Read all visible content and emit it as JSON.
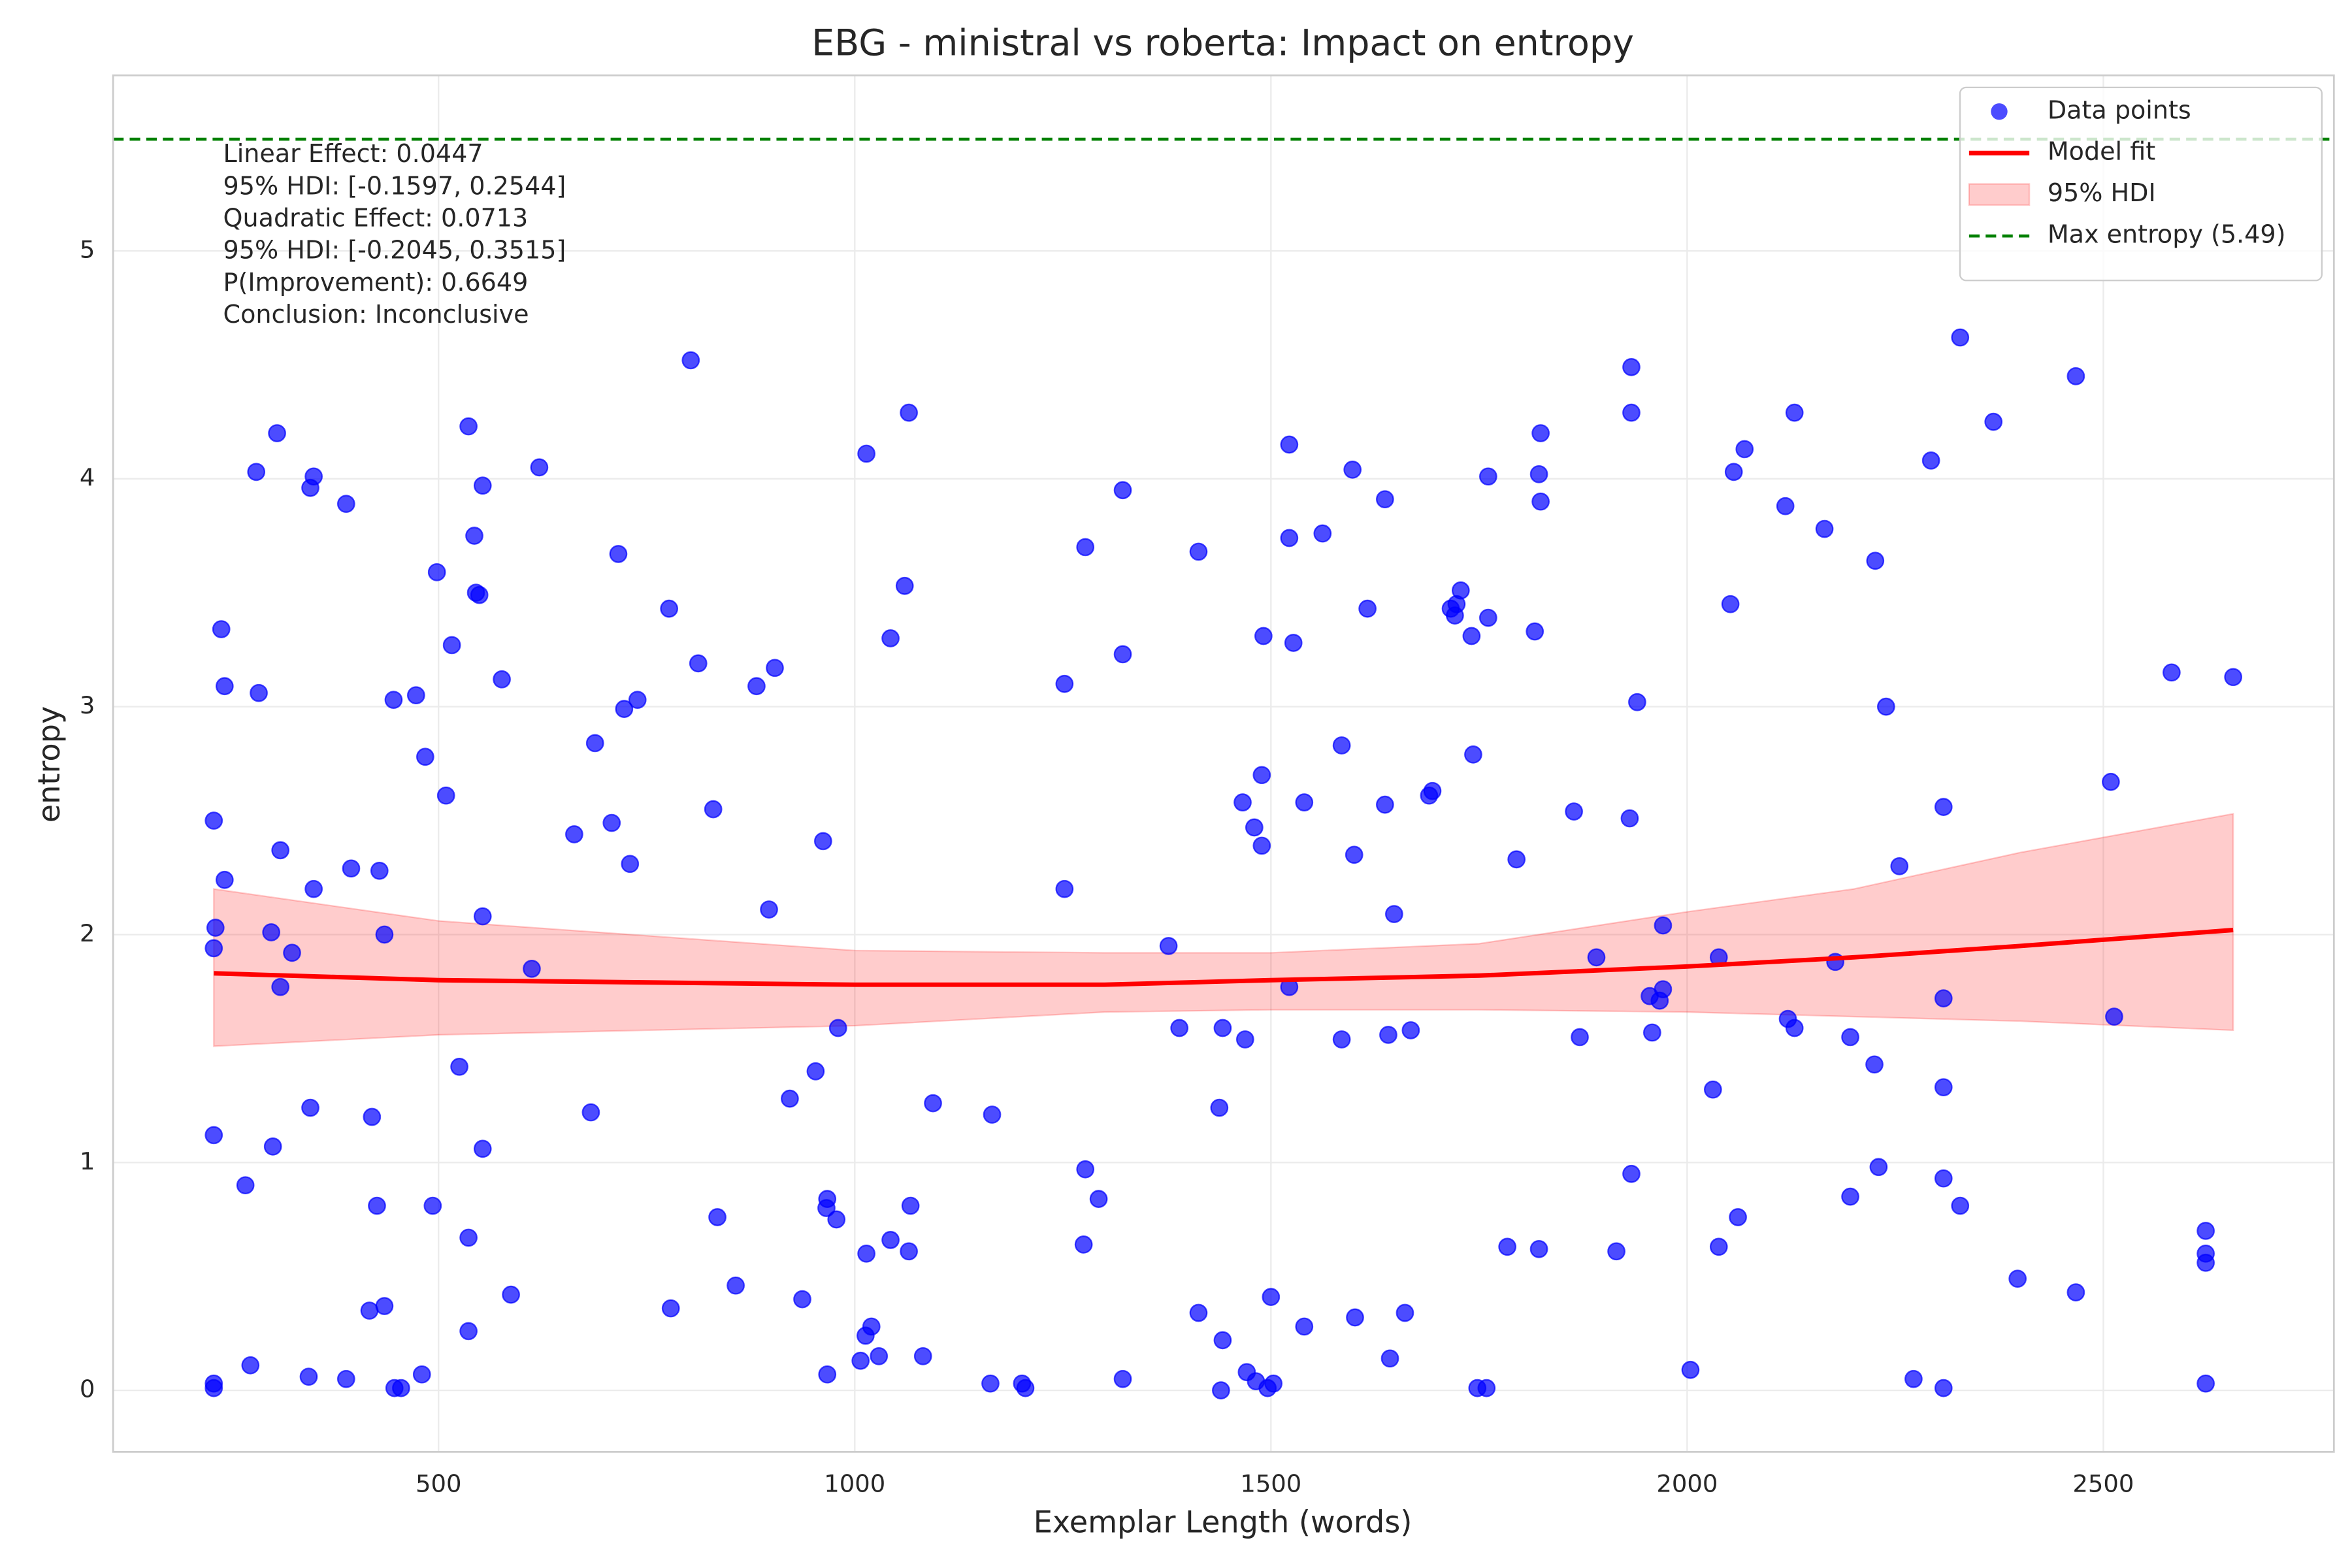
{
  "chart_data": {
    "type": "scatter",
    "title": "EBG - ministral vs roberta: Impact on entropy",
    "x_label": "Exemplar Length (words)",
    "y_label": "entropy",
    "xlim": [
      109,
      2777
    ],
    "ylim": [
      -0.27,
      5.77
    ],
    "xticks": [
      500,
      1000,
      1500,
      2000,
      2500
    ],
    "yticks": [
      0,
      1,
      2,
      3,
      4,
      5
    ],
    "grid": true,
    "legend": "upper right",
    "annotations": [
      "Linear Effect: 0.0447",
      "95% HDI: [-0.1597, 0.2544]",
      "Quadratic Effect: 0.0713",
      "95% HDI: [-0.2045, 0.3515]",
      "P(Improvement): 0.6649",
      "Conclusion: Inconclusive"
    ],
    "series": [
      {
        "name": "Data points",
        "type": "scatter",
        "color": "#0000ff",
        "x": [
          230,
          230,
          230,
          230,
          232,
          230,
          243,
          239,
          243,
          268,
          274,
          281,
          284,
          301,
          299,
          306,
          310,
          310,
          324,
          344,
          346,
          346,
          350,
          350,
          389,
          389,
          395,
          417,
          420,
          426,
          429,
          435,
          435,
          446,
          447,
          455,
          473,
          480,
          484,
          493,
          498,
          509,
          516,
          525,
          536,
          536,
          536,
          543,
          545,
          549,
          553,
          553,
          553,
          576,
          587,
          612,
          621,
          663,
          683,
          688,
          708,
          716,
          723,
          730,
          739,
          779,
          777,
          803,
          812,
          830,
          835,
          857,
          882,
          897,
          904,
          922,
          937,
          953,
          962,
          967,
          966,
          967,
          978,
          980,
          1007,
          1013,
          1014,
          1014,
          1020,
          1029,
          1043,
          1043,
          1060,
          1065,
          1065,
          1067,
          1082,
          1094,
          1163,
          1165,
          1201,
          1205,
          1252,
          1252,
          1275,
          1277,
          1277,
          1293,
          1322,
          1322,
          1322,
          1377,
          1390,
          1413,
          1413,
          1438,
          1440,
          1442,
          1442,
          1466,
          1469,
          1471,
          1480,
          1482,
          1489,
          1489,
          1491,
          1496,
          1500,
          1503,
          1522,
          1522,
          1522,
          1527,
          1540,
          1540,
          1562,
          1585,
          1585,
          1598,
          1600,
          1601,
          1616,
          1637,
          1637,
          1641,
          1643,
          1648,
          1661,
          1668,
          1690,
          1694,
          1716,
          1721,
          1723,
          1728,
          1741,
          1743,
          1748,
          1759,
          1761,
          1761,
          1784,
          1795,
          1817,
          1822,
          1822,
          1824,
          1824,
          1864,
          1871,
          1891,
          1915,
          1931,
          1933,
          1933,
          1933,
          1940,
          1955,
          1958,
          1967,
          1971,
          1971,
          2004,
          2031,
          2038,
          2038,
          2052,
          2056,
          2061,
          2069,
          2118,
          2121,
          2129,
          2129,
          2165,
          2178,
          2196,
          2196,
          2225,
          2226,
          2230,
          2239,
          2255,
          2272,
          2293,
          2308,
          2308,
          2308,
          2308,
          2308,
          2328,
          2328,
          2368,
          2397,
          2467,
          2467,
          2509,
          2513,
          2582,
          2623,
          2623,
          2623,
          2623,
          2656
        ],
        "values": [
          0.01,
          0.03,
          1.12,
          1.94,
          2.03,
          2.5,
          2.24,
          3.34,
          3.09,
          0.9,
          0.11,
          4.03,
          3.06,
          1.07,
          2.01,
          4.2,
          2.37,
          1.77,
          1.92,
          0.06,
          1.24,
          3.96,
          4.01,
          2.2,
          0.05,
          3.89,
          2.29,
          0.35,
          1.2,
          0.81,
          2.28,
          0.37,
          2.0,
          3.03,
          0.01,
          0.01,
          3.05,
          0.07,
          2.78,
          0.81,
          3.59,
          2.61,
          3.27,
          1.42,
          0.26,
          0.67,
          4.23,
          3.75,
          3.5,
          3.49,
          3.97,
          1.06,
          2.08,
          3.12,
          0.42,
          1.85,
          4.05,
          2.44,
          1.22,
          2.84,
          2.49,
          3.67,
          2.99,
          2.31,
          3.03,
          0.36,
          3.43,
          4.52,
          3.19,
          2.55,
          0.76,
          0.46,
          3.09,
          2.11,
          3.17,
          1.28,
          0.4,
          1.4,
          2.41,
          0.07,
          0.8,
          0.84,
          0.75,
          1.59,
          0.13,
          0.24,
          0.6,
          4.11,
          0.28,
          0.15,
          0.66,
          3.3,
          3.53,
          0.61,
          4.29,
          0.81,
          0.15,
          1.26,
          0.03,
          1.21,
          0.03,
          0.01,
          3.1,
          2.2,
          0.64,
          0.97,
          3.7,
          0.84,
          0.05,
          3.23,
          3.95,
          1.95,
          1.59,
          3.68,
          0.34,
          1.24,
          0.0,
          0.22,
          1.59,
          2.58,
          1.54,
          0.08,
          2.47,
          0.04,
          2.7,
          2.39,
          3.31,
          0.01,
          0.41,
          0.03,
          3.74,
          4.15,
          1.77,
          3.28,
          2.58,
          0.28,
          3.76,
          2.83,
          1.54,
          4.04,
          2.35,
          0.32,
          3.43,
          3.91,
          2.57,
          1.56,
          0.14,
          2.09,
          0.34,
          1.58,
          2.61,
          2.63,
          3.43,
          3.4,
          3.45,
          3.51,
          3.31,
          2.79,
          0.01,
          0.01,
          4.01,
          3.39,
          0.63,
          2.33,
          3.33,
          4.02,
          0.62,
          3.9,
          4.2,
          2.54,
          1.55,
          1.9,
          0.61,
          2.51,
          4.49,
          4.29,
          0.95,
          3.02,
          1.73,
          1.57,
          1.71,
          1.76,
          2.04,
          0.09,
          1.32,
          1.9,
          0.63,
          3.45,
          4.03,
          0.76,
          4.13,
          3.88,
          1.63,
          4.29,
          1.59,
          3.78,
          1.88,
          1.55,
          0.85,
          1.43,
          3.64,
          0.98,
          3.0,
          2.3,
          0.05,
          4.08,
          0.01,
          1.33,
          0.93,
          2.56,
          1.72,
          4.62,
          0.81,
          4.25,
          0.49,
          4.45,
          0.43,
          2.67,
          1.64,
          3.15,
          0.7,
          0.6,
          0.56,
          0.03,
          3.13
        ]
      },
      {
        "name": "Model fit",
        "type": "line",
        "color": "#ff0000",
        "x": [
          230,
          500,
          1000,
          1300,
          1500,
          1750,
          2000,
          2200,
          2400,
          2656
        ],
        "values": [
          1.83,
          1.8,
          1.78,
          1.78,
          1.8,
          1.82,
          1.86,
          1.9,
          1.95,
          2.02
        ]
      },
      {
        "name": "95% HDI",
        "type": "band",
        "color": "#ff0000",
        "x": [
          230,
          500,
          1000,
          1300,
          1500,
          1750,
          2000,
          2200,
          2400,
          2656
        ],
        "lower": [
          1.51,
          1.56,
          1.6,
          1.66,
          1.67,
          1.67,
          1.66,
          1.64,
          1.62,
          1.58
        ],
        "upper": [
          2.2,
          2.06,
          1.93,
          1.92,
          1.92,
          1.96,
          2.1,
          2.2,
          2.36,
          2.53
        ]
      },
      {
        "name": "Max entropy (5.49)",
        "type": "hline",
        "color": "#008000",
        "values": [
          5.49
        ]
      }
    ]
  }
}
